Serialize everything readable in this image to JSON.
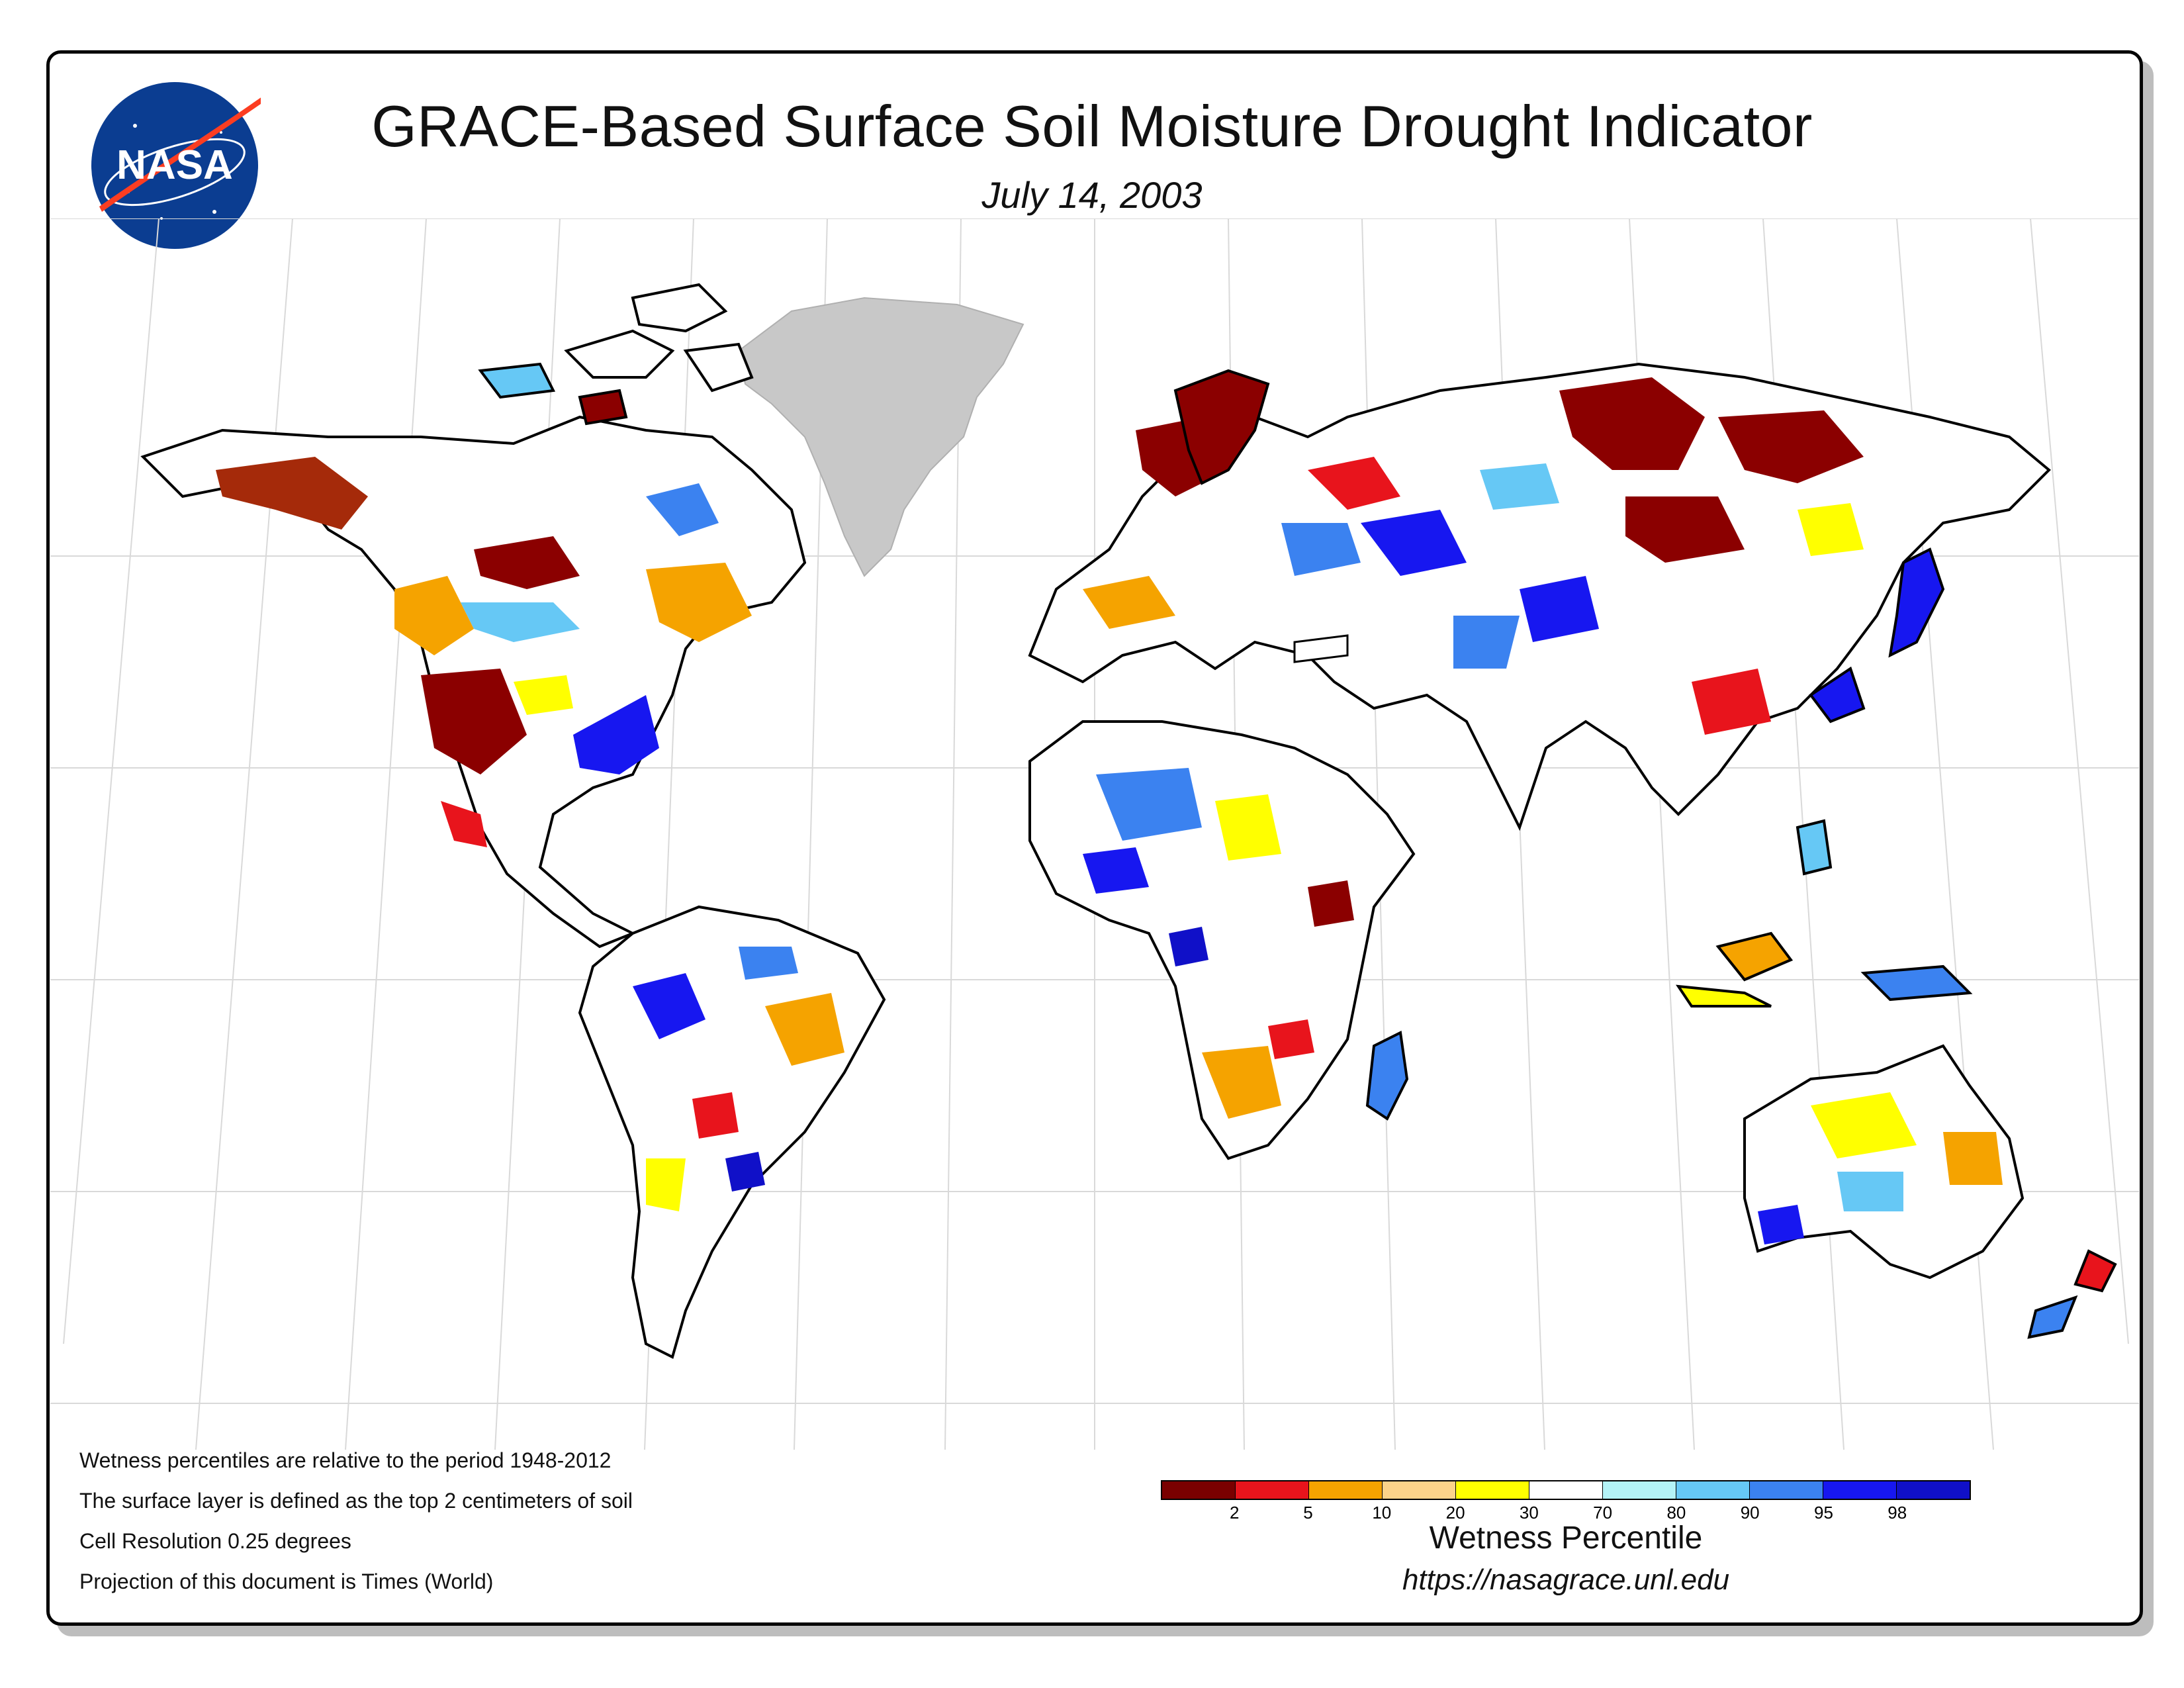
{
  "header": {
    "title": "GRACE-Based Surface Soil Moisture Drought Indicator",
    "date": "July 14, 2003",
    "logo_text": "NASA"
  },
  "notes": [
    "Wetness percentiles are relative to the period 1948-2012",
    "The surface layer is defined as the top 2 centimeters of soil",
    "Cell Resolution 0.25 degrees",
    "Projection of this document is Times (World)"
  ],
  "legend": {
    "title": "Wetness Percentile",
    "ticks": [
      "2",
      "5",
      "10",
      "20",
      "30",
      "70",
      "80",
      "90",
      "95",
      "98"
    ],
    "colors": [
      "#7a0000",
      "#e8141c",
      "#f5a300",
      "#fcd38a",
      "#ffff00",
      "#ffffff",
      "#b4f3f7",
      "#66c8f5",
      "#3b82f0",
      "#1717f0",
      "#1010c8"
    ]
  },
  "url": "https://nasagrace.unl.edu",
  "map": {
    "land_color": "#ffffff",
    "greenland_color": "#c8c8c8",
    "graticule_color": "#d9d9d9",
    "border_color": "#000000"
  }
}
